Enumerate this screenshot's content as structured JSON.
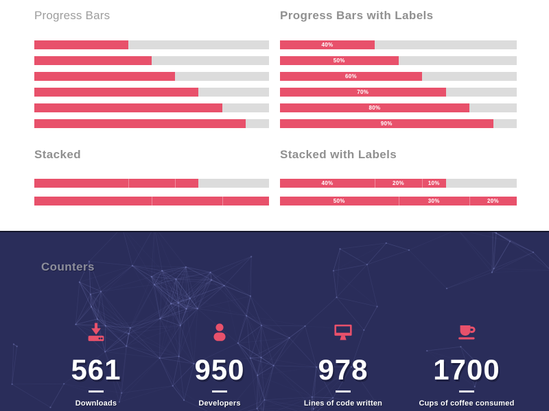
{
  "colors": {
    "accent": "#e8516b",
    "track": "#dcdcdc",
    "heading": "#909090",
    "dark_bg": "#2a2d5a",
    "plexus_line": "#8a90d4"
  },
  "sections": {
    "progress_bars": {
      "title": "Progress Bars",
      "bars": [
        [
          {
            "value": 40
          }
        ],
        [
          {
            "value": 50
          }
        ],
        [
          {
            "value": 60
          }
        ],
        [
          {
            "value": 70
          }
        ],
        [
          {
            "value": 80
          }
        ],
        [
          {
            "value": 90
          }
        ]
      ]
    },
    "progress_bars_labels": {
      "title": "Progress Bars with Labels",
      "bars": [
        [
          {
            "value": 40,
            "label": "40%"
          }
        ],
        [
          {
            "value": 50,
            "label": "50%"
          }
        ],
        [
          {
            "value": 60,
            "label": "60%"
          }
        ],
        [
          {
            "value": 70,
            "label": "70%"
          }
        ],
        [
          {
            "value": 80,
            "label": "80%"
          }
        ],
        [
          {
            "value": 90,
            "label": "90%"
          }
        ]
      ]
    },
    "stacked": {
      "title": "Stacked",
      "bars": [
        [
          {
            "value": 40
          },
          {
            "value": 20
          },
          {
            "value": 10
          }
        ],
        [
          {
            "value": 50
          },
          {
            "value": 30
          },
          {
            "value": 20
          }
        ]
      ]
    },
    "stacked_labels": {
      "title": "Stacked with Labels",
      "bars": [
        [
          {
            "value": 40,
            "label": "40%"
          },
          {
            "value": 20,
            "label": "20%"
          },
          {
            "value": 10,
            "label": "10%"
          }
        ],
        [
          {
            "value": 50,
            "label": "50%"
          },
          {
            "value": 30,
            "label": "30%"
          },
          {
            "value": 20,
            "label": "20%"
          }
        ]
      ]
    },
    "counters": {
      "title": "Counters",
      "items": [
        {
          "icon": "download-icon",
          "value": "561",
          "label": "Downloads"
        },
        {
          "icon": "user-icon",
          "value": "950",
          "label": "Developers"
        },
        {
          "icon": "monitor-icon",
          "value": "978",
          "label": "Lines of code written"
        },
        {
          "icon": "coffee-icon",
          "value": "1700",
          "label": "Cups of coffee consumed"
        }
      ]
    }
  }
}
